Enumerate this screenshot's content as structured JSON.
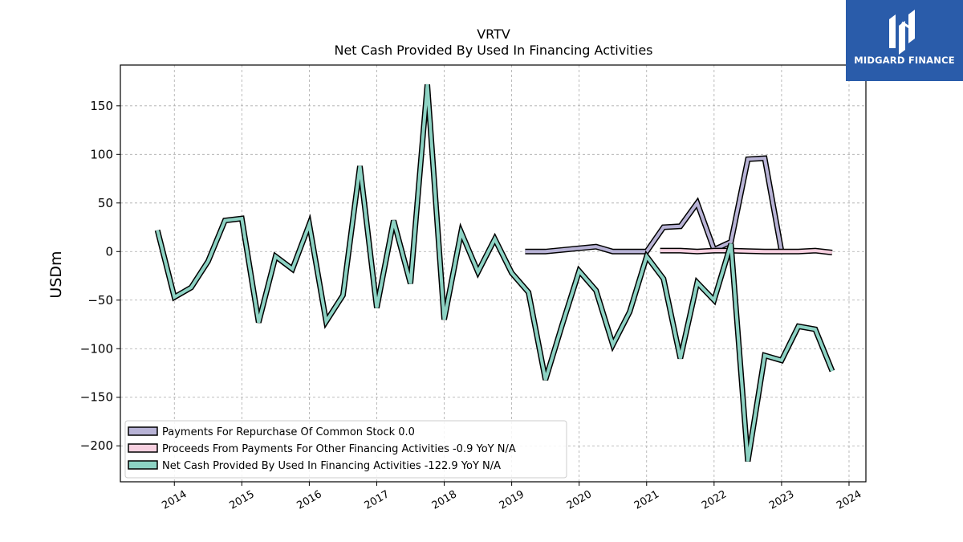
{
  "brand": {
    "logo_text": "MIDGARD FINANCE",
    "logo_bg": "#2a5caa"
  },
  "chart_data": {
    "type": "line",
    "title": "VRTV",
    "subtitle": "Net Cash Provided By Used In Financing Activities",
    "xlabel": "",
    "ylabel": "USDm",
    "xlim": [
      2013.2,
      2024.25
    ],
    "ylim": [
      -237,
      192
    ],
    "xticks": [
      "2014",
      "2015",
      "2016",
      "2017",
      "2018",
      "2019",
      "2020",
      "2021",
      "2022",
      "2023",
      "2024"
    ],
    "yticks": [
      "150",
      "100",
      "50",
      "0",
      "−50",
      "−100",
      "−150",
      "−200"
    ],
    "grid": true,
    "legend_position": "lower-left",
    "series": [
      {
        "name": "Payments For Repurchase Of Common Stock",
        "legend_label": "Payments For Repurchase Of Common Stock  0.0",
        "color": "#b8b3d6",
        "x": [
          2019.2,
          2019.5,
          2020.25,
          2020.5,
          2020.75,
          2021.0,
          2021.25,
          2021.5,
          2021.75,
          2022.0,
          2022.25,
          2022.5,
          2022.75,
          2023.0
        ],
        "y": [
          0,
          0,
          5,
          0,
          0,
          0,
          25,
          26,
          50,
          2,
          10,
          95,
          96,
          0
        ]
      },
      {
        "name": "Proceeds From Payments For Other Financing Activities",
        "legend_label": "Proceeds From Payments For Other Financing Activities  -0.9 YoY N/A",
        "color": "#f7d0e0",
        "x": [
          2021.2,
          2021.5,
          2021.75,
          2022.0,
          2022.25,
          2022.5,
          2022.75,
          2023.0,
          2023.25,
          2023.5,
          2023.75
        ],
        "y": [
          1,
          1,
          0,
          1,
          1,
          0.5,
          0,
          0,
          0,
          1,
          -1
        ]
      },
      {
        "name": "Net Cash Provided By Used In Financing Activities",
        "legend_label": "Net Cash Provided By Used In Financing Activities  -122.9 YoY N/A",
        "color": "#8dd3c4",
        "x": [
          2013.75,
          2014.0,
          2014.25,
          2014.5,
          2014.75,
          2015.0,
          2015.25,
          2015.5,
          2015.75,
          2016.0,
          2016.25,
          2016.5,
          2016.75,
          2017.0,
          2017.25,
          2017.5,
          2017.75,
          2018.0,
          2018.25,
          2018.5,
          2018.75,
          2019.0,
          2019.25,
          2019.5,
          2019.75,
          2020.0,
          2020.25,
          2020.5,
          2020.75,
          2021.0,
          2021.25,
          2021.5,
          2021.75,
          2022.0,
          2022.25,
          2022.5,
          2022.75,
          2023.0,
          2023.25,
          2023.5,
          2023.75
        ],
        "y": [
          22,
          -47,
          -37,
          -10,
          32,
          34,
          -73,
          -5,
          -18,
          28,
          -72,
          -45,
          88,
          -58,
          32,
          -33,
          172,
          -70,
          20,
          -21,
          13,
          -22,
          -42,
          -132,
          -75,
          -20,
          -40,
          -96,
          -62,
          -5,
          -28,
          -110,
          -32,
          -50,
          8,
          -216,
          -107,
          -112,
          -77,
          -80,
          -123
        ]
      }
    ]
  }
}
